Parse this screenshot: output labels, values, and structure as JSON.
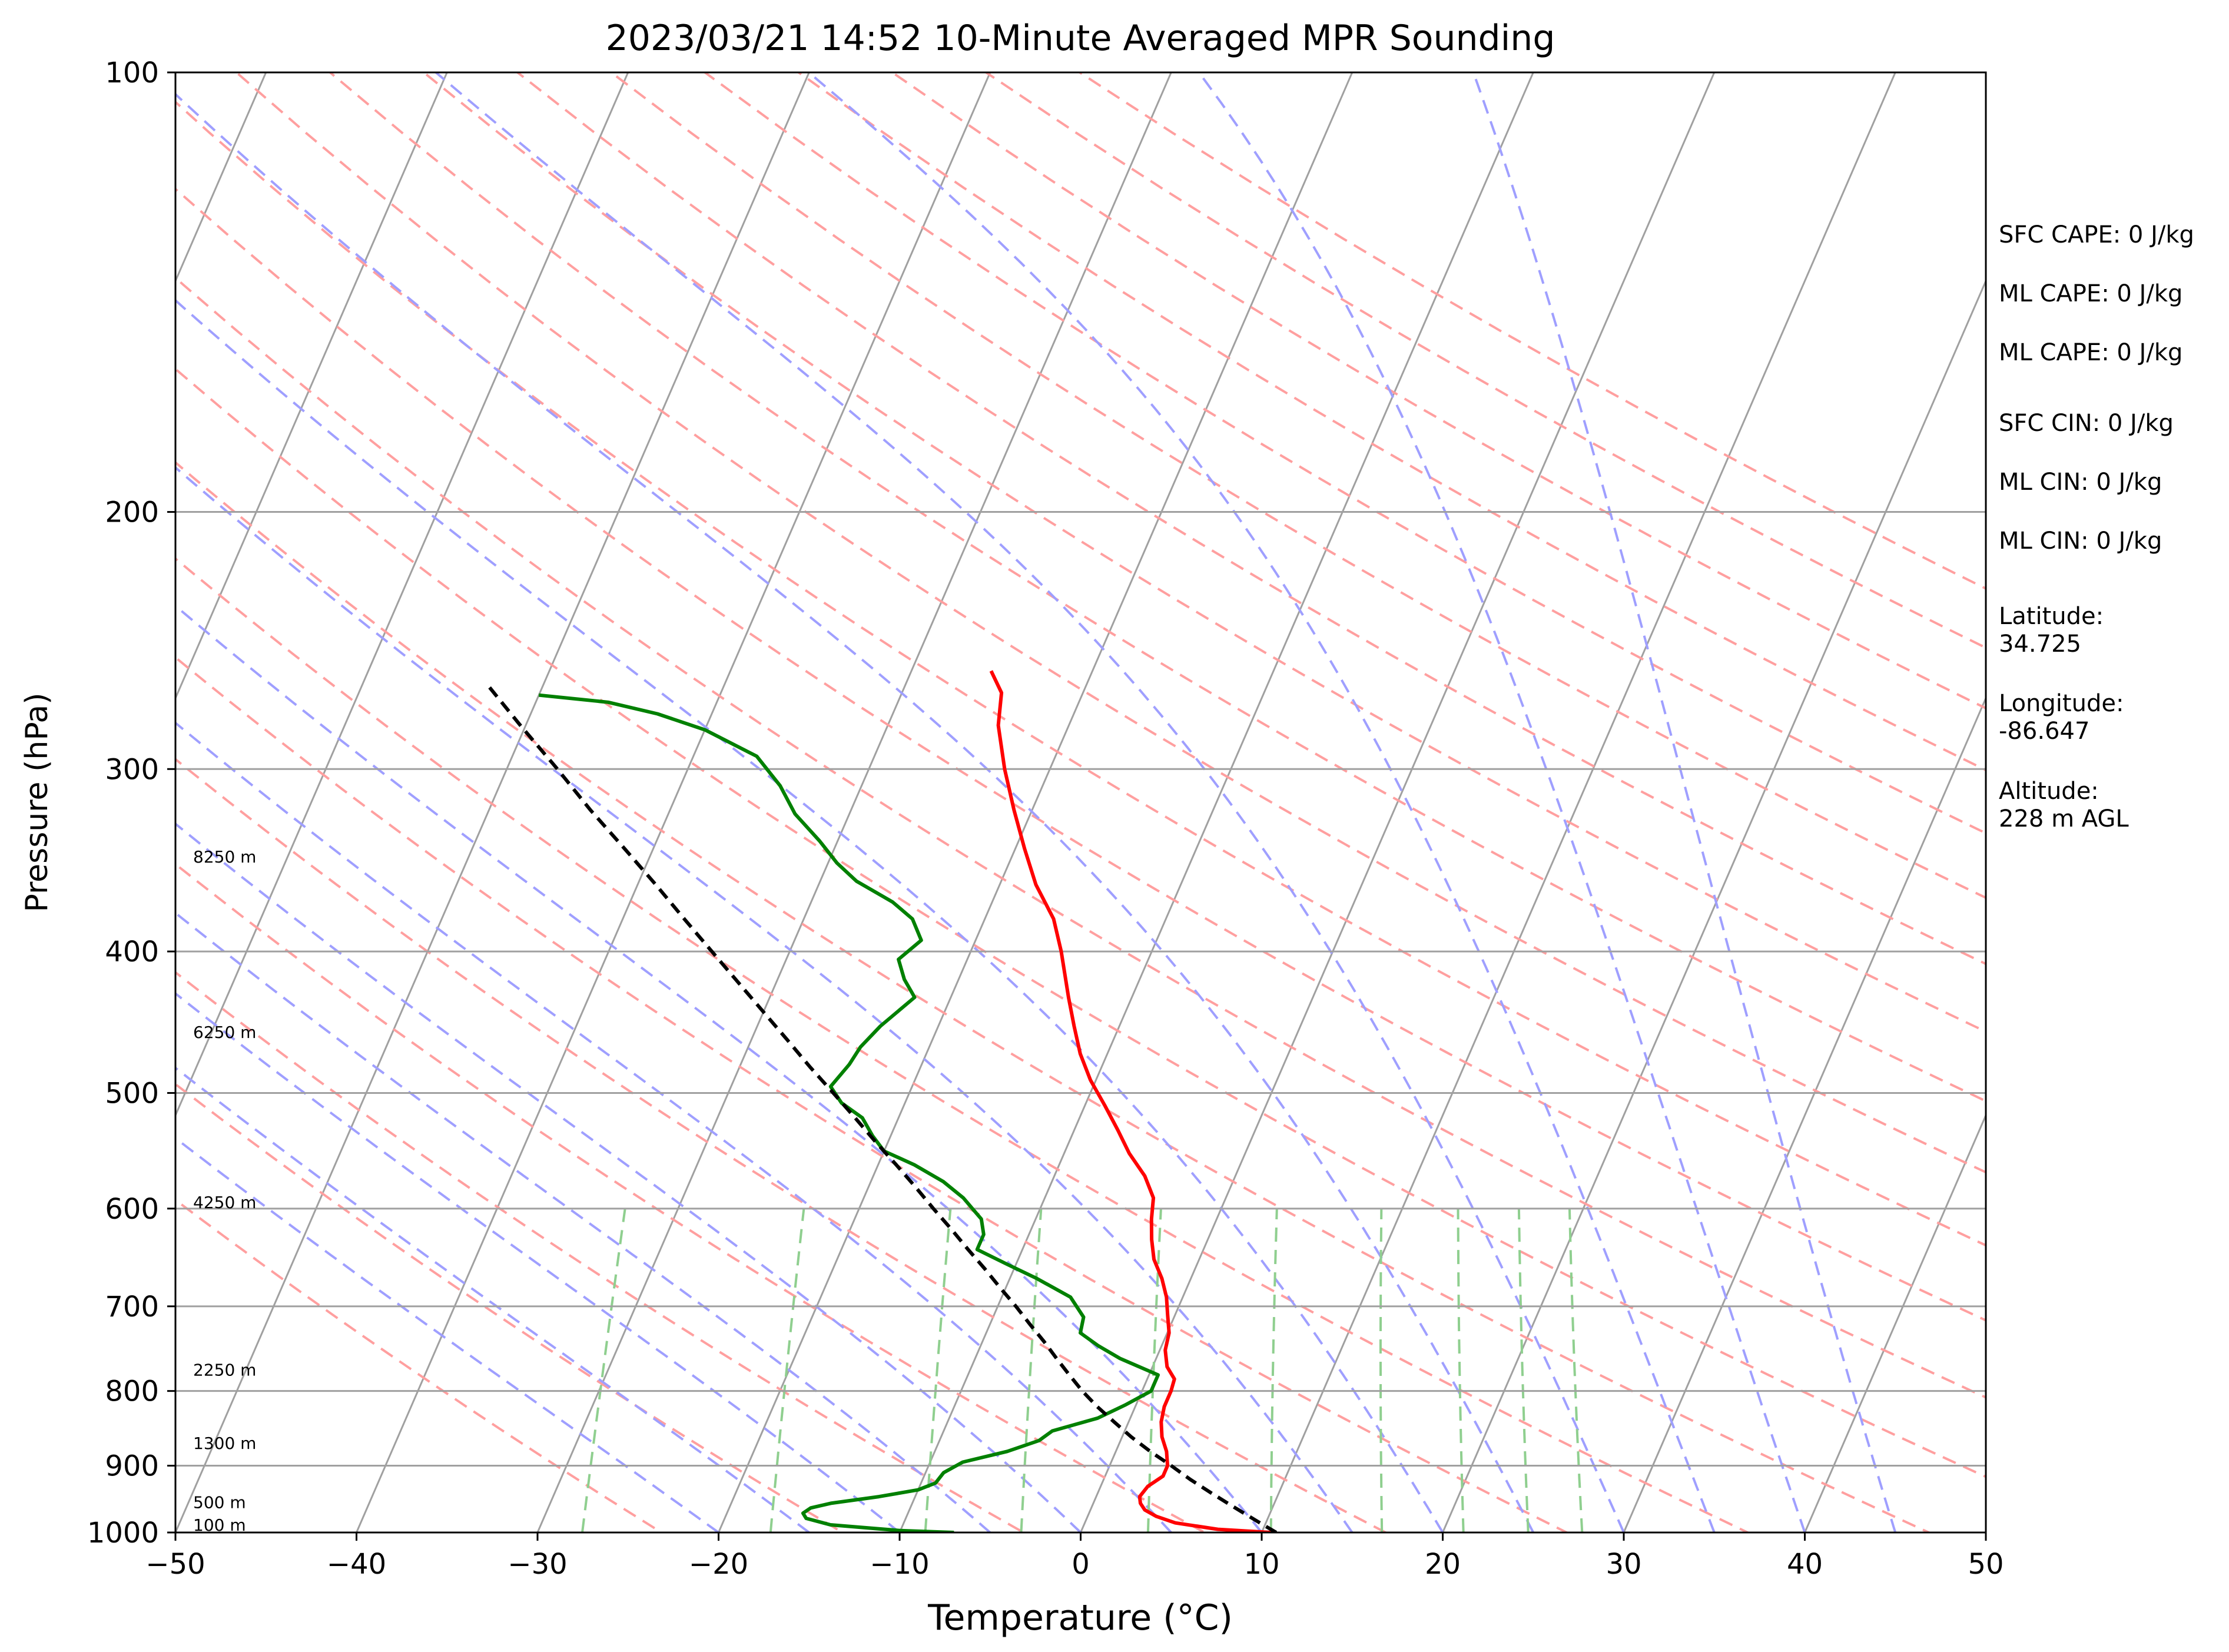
{
  "chart_data": {
    "type": "line",
    "title": "2023/03/21 14:52 10-Minute Averaged MPR Sounding",
    "xlabel": "Temperature (°C)",
    "ylabel": "Pressure (hPa)",
    "xlim": [
      -50,
      50
    ],
    "ylim": [
      1000,
      100
    ],
    "y_scale": "log",
    "x_ticks": [
      "−50",
      "−40",
      "−30",
      "−20",
      "−10",
      "0",
      "10",
      "20",
      "30",
      "40",
      "50"
    ],
    "x_tick_values": [
      -50,
      -40,
      -30,
      -20,
      -10,
      0,
      10,
      20,
      30,
      40,
      50
    ],
    "y_ticks": [
      "100",
      "200",
      "300",
      "400",
      "500",
      "600",
      "700",
      "800",
      "900",
      "1000"
    ],
    "y_tick_values": [
      100,
      200,
      300,
      400,
      500,
      600,
      700,
      800,
      900,
      1000
    ],
    "grid": true,
    "colors": {
      "temperature": "#ff0000",
      "dewpoint": "#008000",
      "parcel": "#000000",
      "isotherm": "#a0a0a0",
      "dry_adiabat": "#ff9f9f",
      "moist_adiabat": "#9f9fff",
      "mixing_ratio": "#8fcf8f"
    },
    "height_labels": [
      {
        "text": "100 m",
        "pressure": 990
      },
      {
        "text": "500 m",
        "pressure": 955
      },
      {
        "text": "1300 m",
        "pressure": 870
      },
      {
        "text": "2250 m",
        "pressure": 775
      },
      {
        "text": "4250 m",
        "pressure": 595
      },
      {
        "text": "6250 m",
        "pressure": 455
      },
      {
        "text": "8250 m",
        "pressure": 345
      }
    ],
    "series": [
      {
        "key": "temperature",
        "points": [
          [
            1000,
            10.5
          ],
          [
            995,
            7.5
          ],
          [
            985,
            5.0
          ],
          [
            975,
            3.8
          ],
          [
            965,
            3.0
          ],
          [
            955,
            2.6
          ],
          [
            945,
            2.4
          ],
          [
            930,
            2.6
          ],
          [
            915,
            3.2
          ],
          [
            900,
            3.2
          ],
          [
            880,
            2.8
          ],
          [
            860,
            2.2
          ],
          [
            840,
            1.8
          ],
          [
            820,
            1.6
          ],
          [
            800,
            1.6
          ],
          [
            785,
            1.5
          ],
          [
            770,
            0.8
          ],
          [
            750,
            0.3
          ],
          [
            730,
            0.1
          ],
          [
            710,
            -0.4
          ],
          [
            690,
            -0.9
          ],
          [
            670,
            -1.6
          ],
          [
            650,
            -2.5
          ],
          [
            630,
            -3.1
          ],
          [
            610,
            -3.6
          ],
          [
            590,
            -4.0
          ],
          [
            570,
            -5.0
          ],
          [
            550,
            -6.4
          ],
          [
            530,
            -7.6
          ],
          [
            510,
            -8.9
          ],
          [
            490,
            -10.3
          ],
          [
            470,
            -11.5
          ],
          [
            450,
            -12.5
          ],
          [
            430,
            -13.5
          ],
          [
            400,
            -15.0
          ],
          [
            380,
            -16.2
          ],
          [
            360,
            -18.0
          ],
          [
            340,
            -19.5
          ],
          [
            320,
            -21.0
          ],
          [
            300,
            -22.5
          ],
          [
            280,
            -23.9
          ],
          [
            266,
            -24.5
          ],
          [
            257,
            -25.6
          ]
        ]
      },
      {
        "key": "dewpoint",
        "points": [
          [
            1000,
            -7.0
          ],
          [
            997,
            -10.0
          ],
          [
            988,
            -14.0
          ],
          [
            978,
            -15.5
          ],
          [
            970,
            -15.8
          ],
          [
            962,
            -15.5
          ],
          [
            955,
            -14.5
          ],
          [
            945,
            -12.0
          ],
          [
            935,
            -10.0
          ],
          [
            925,
            -9.2
          ],
          [
            910,
            -9.0
          ],
          [
            895,
            -8.2
          ],
          [
            880,
            -6.0
          ],
          [
            865,
            -4.5
          ],
          [
            852,
            -4.0
          ],
          [
            835,
            -1.8
          ],
          [
            818,
            -0.6
          ],
          [
            800,
            0.5
          ],
          [
            780,
            0.5
          ],
          [
            760,
            -2.0
          ],
          [
            745,
            -3.5
          ],
          [
            730,
            -4.8
          ],
          [
            712,
            -5.0
          ],
          [
            690,
            -6.2
          ],
          [
            670,
            -8.5
          ],
          [
            655,
            -10.5
          ],
          [
            640,
            -12.5
          ],
          [
            625,
            -12.5
          ],
          [
            610,
            -13.0
          ],
          [
            590,
            -14.5
          ],
          [
            575,
            -16.0
          ],
          [
            560,
            -18.0
          ],
          [
            548,
            -20.0
          ],
          [
            535,
            -21.0
          ],
          [
            520,
            -22.0
          ],
          [
            508,
            -23.5
          ],
          [
            495,
            -24.5
          ],
          [
            478,
            -24.0
          ],
          [
            465,
            -23.8
          ],
          [
            450,
            -23.2
          ],
          [
            430,
            -22.0
          ],
          [
            418,
            -23.0
          ],
          [
            405,
            -23.8
          ],
          [
            393,
            -23.0
          ],
          [
            380,
            -24.0
          ],
          [
            370,
            -25.5
          ],
          [
            358,
            -28.0
          ],
          [
            348,
            -29.5
          ],
          [
            336,
            -31.0
          ],
          [
            322,
            -33.0
          ],
          [
            308,
            -34.5
          ],
          [
            294,
            -36.5
          ],
          [
            282,
            -40.0
          ],
          [
            275,
            -43.0
          ],
          [
            270,
            -46.0
          ],
          [
            267,
            -50.0
          ]
        ]
      },
      {
        "key": "parcel",
        "dashed": true,
        "points": [
          [
            1000,
            10.8
          ],
          [
            980,
            9.3
          ],
          [
            960,
            7.8
          ],
          [
            940,
            6.3
          ],
          [
            920,
            4.8
          ],
          [
            900,
            3.4
          ],
          [
            880,
            1.9
          ],
          [
            860,
            0.5
          ],
          [
            840,
            -0.8
          ],
          [
            820,
            -2.1
          ],
          [
            800,
            -3.3
          ],
          [
            780,
            -4.4
          ],
          [
            760,
            -5.5
          ],
          [
            740,
            -6.6
          ],
          [
            720,
            -7.8
          ],
          [
            700,
            -9.0
          ],
          [
            680,
            -10.3
          ],
          [
            660,
            -11.6
          ],
          [
            640,
            -13.0
          ],
          [
            620,
            -14.4
          ],
          [
            600,
            -15.9
          ],
          [
            580,
            -17.4
          ],
          [
            560,
            -19.0
          ],
          [
            540,
            -20.7
          ],
          [
            520,
            -22.4
          ],
          [
            500,
            -24.2
          ],
          [
            480,
            -26.1
          ],
          [
            460,
            -28.0
          ],
          [
            440,
            -30.0
          ],
          [
            420,
            -32.1
          ],
          [
            400,
            -34.3
          ],
          [
            380,
            -36.6
          ],
          [
            360,
            -39.0
          ],
          [
            340,
            -41.6
          ],
          [
            320,
            -44.4
          ],
          [
            300,
            -47.2
          ],
          [
            280,
            -50.3
          ],
          [
            262,
            -53.2
          ]
        ]
      }
    ]
  },
  "side_panel": {
    "sfc_cape": "SFC CAPE: 0 J/kg",
    "ml_cape_1": "ML CAPE: 0 J/kg",
    "ml_cape_2": "ML CAPE: 0 J/kg",
    "sfc_cin": "SFC CIN: 0 J/kg",
    "ml_cin_1": "ML CIN: 0 J/kg",
    "ml_cin_2": "ML CIN: 0 J/kg",
    "latitude_label": "Latitude:",
    "latitude_value": "34.725",
    "longitude_label": "Longitude:",
    "longitude_value": "-86.647",
    "altitude_label": "Altitude:",
    "altitude_value": "228 m AGL"
  }
}
